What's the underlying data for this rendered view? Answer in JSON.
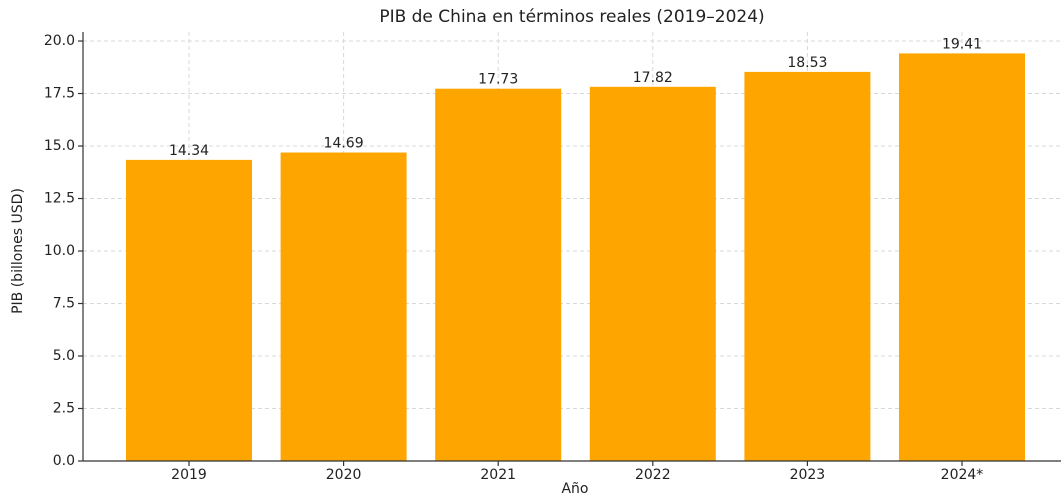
{
  "chart_data": {
    "type": "bar",
    "title": "PIB de China en términos reales (2019–2024)",
    "x_label": "Año",
    "y_label": "PIB (billones USD)",
    "categories": [
      "2019",
      "2020",
      "2021",
      "2022",
      "2023",
      "2024*"
    ],
    "values": [
      14.34,
      14.69,
      17.73,
      17.82,
      18.53,
      19.41
    ],
    "color": "#ffa500",
    "ylim": [
      0,
      20.43
    ],
    "yticks": [
      {
        "value": 0,
        "label": "0.0"
      },
      2.5,
      {
        "value": 5,
        "label": "5.0"
      },
      7.5,
      {
        "value": 10,
        "label": "10.0"
      },
      12.5,
      {
        "value": 15,
        "label": "15.0"
      },
      17.5,
      {
        "value": 20,
        "label": "20.0"
      }
    ],
    "grid": true
  }
}
